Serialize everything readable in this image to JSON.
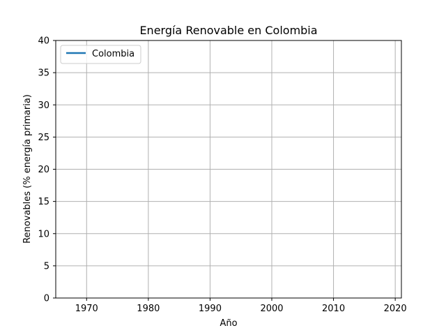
{
  "chart_data": {
    "type": "line",
    "title": "Energía Renovable en Colombia",
    "xlabel": "Año",
    "ylabel": "Renovables (% energía primaria)",
    "xlim": [
      1965,
      2021
    ],
    "ylim": [
      0,
      40
    ],
    "xticks": [
      1970,
      1980,
      1990,
      2000,
      2010,
      2020
    ],
    "yticks": [
      0,
      5,
      10,
      15,
      20,
      25,
      30,
      35,
      40
    ],
    "grid": true,
    "legend_position": "upper-left",
    "series": [
      {
        "name": "Colombia",
        "color": "#1f77b4",
        "x": [],
        "y": []
      }
    ]
  }
}
